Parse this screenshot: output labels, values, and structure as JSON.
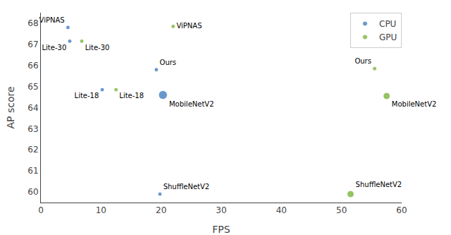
{
  "chart_data": {
    "type": "scatter",
    "xlabel": "FPS",
    "ylabel": "AP score",
    "xlim": [
      0,
      60
    ],
    "ylim": [
      59.5,
      68.5
    ],
    "xticks": [
      0,
      10,
      20,
      30,
      40,
      50,
      60
    ],
    "yticks": [
      60,
      61,
      62,
      63,
      64,
      65,
      66,
      67,
      68
    ],
    "grid": false,
    "legend": "upper right",
    "series": [
      {
        "name": "CPU",
        "color": "#2b6cb8",
        "labels": [
          "ViPNAS",
          "Lite-30",
          "Lite-18",
          "Ours",
          "MobileNetV2",
          "ShuffleNetV2"
        ],
        "x": [
          4.5,
          4.8,
          10.2,
          19.2,
          20.3,
          19.8
        ],
        "values": [
          67.8,
          67.15,
          64.85,
          65.8,
          64.6,
          59.9
        ],
        "sizes": [
          18,
          18,
          18,
          18,
          80,
          18
        ]
      },
      {
        "name": "GPU",
        "color": "#6aab20",
        "labels": [
          "ViPNAS",
          "Lite-30",
          "Lite-18",
          "Ours",
          "MobileNetV2",
          "ShuffleNetV2"
        ],
        "x": [
          22.0,
          6.8,
          12.5,
          55.5,
          57.5,
          51.5
        ],
        "values": [
          67.85,
          67.15,
          64.85,
          65.85,
          64.55,
          59.9
        ],
        "sizes": [
          18,
          18,
          18,
          18,
          50,
          50
        ]
      }
    ]
  }
}
